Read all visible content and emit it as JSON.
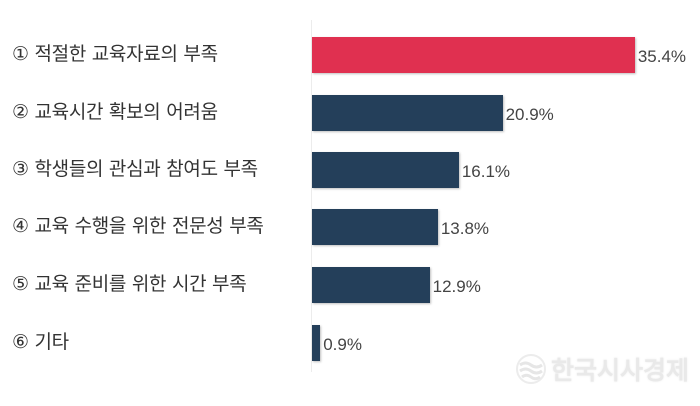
{
  "chart_data": {
    "type": "bar",
    "orientation": "horizontal",
    "title": "",
    "xlabel": "",
    "ylabel": "",
    "categories": [
      "① 적절한 교육자료의 부족",
      "② 교육시간 확보의 어려움",
      "③ 학생들의 관심과 참여도 부족",
      "④ 교육 수행을 위한 전문성 부족",
      "⑤ 교육 준비를 위한 시간 부족",
      "⑥ 기타"
    ],
    "values": [
      35.4,
      20.9,
      16.1,
      13.8,
      12.9,
      0.9
    ],
    "value_labels": [
      "35.4%",
      "20.9%",
      "16.1%",
      "13.8%",
      "12.9%",
      "0.9%"
    ],
    "unit": "%",
    "xlim": [
      0,
      40
    ],
    "grid": false,
    "legend": "none",
    "colors": [
      "#e03050",
      "#243f5a",
      "#243f5a",
      "#243f5a",
      "#243f5a",
      "#243f5a"
    ],
    "highlight_color": "#e03050",
    "base_color": "#243f5a"
  },
  "watermark": {
    "text": "한국시사경제",
    "icon": "wave-logo-icon"
  }
}
